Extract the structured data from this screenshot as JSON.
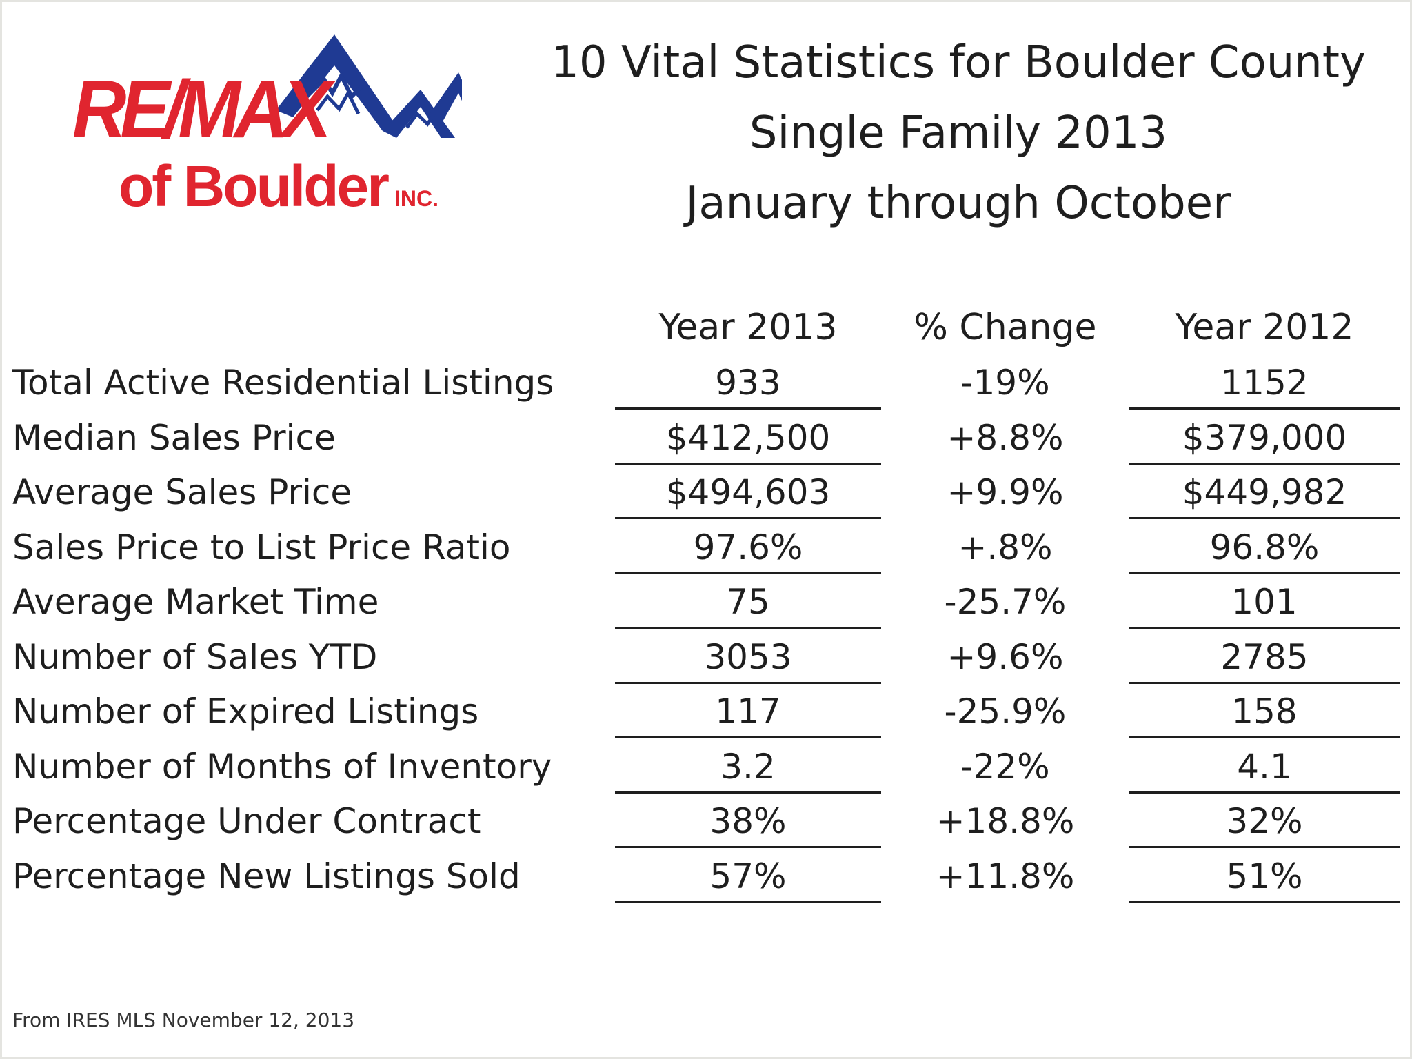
{
  "logo": {
    "brand": "RE/MAX",
    "sub": "of Boulder",
    "inc": "INC.",
    "mountain_color": "#1f3a93",
    "brand_color": "#e0252f"
  },
  "title": {
    "line1": "10 Vital Statistics for Boulder County",
    "line2": "Single Family 2013",
    "line3": "January through October"
  },
  "table": {
    "headers": [
      "Year 2013",
      "% Change",
      "Year 2012"
    ],
    "rows": [
      {
        "label": "Total Active Residential  Listings",
        "y2013": "933",
        "change": "-19%",
        "y2012": "1152"
      },
      {
        "label": "Median Sales Price",
        "y2013": "$412,500",
        "change": "+8.8%",
        "y2012": "$379,000"
      },
      {
        "label": "Average Sales Price",
        "y2013": "$494,603",
        "change": "+9.9%",
        "y2012": "$449,982"
      },
      {
        "label": "Sales Price to List Price Ratio",
        "y2013": "97.6%",
        "change": "+.8%",
        "y2012": "96.8%"
      },
      {
        "label": "Average Market Time",
        "y2013": "75",
        "change": "-25.7%",
        "y2012": "101"
      },
      {
        "label": "Number of Sales YTD",
        "y2013": "3053",
        "change": "+9.6%",
        "y2012": "2785"
      },
      {
        "label": "Number of Expired Listings",
        "y2013": "117",
        "change": "-25.9%",
        "y2012": "158"
      },
      {
        "label": "Number of Months of Inventory",
        "y2013": "3.2",
        "change": "-22%",
        "y2012": "4.1"
      },
      {
        "label": "Percentage Under Contract",
        "y2013": "38%",
        "change": "+18.8%",
        "y2012": "32%"
      },
      {
        "label": "Percentage New Listings Sold",
        "y2013": "57%",
        "change": "+11.8%",
        "y2012": "51%"
      }
    ]
  },
  "footer": {
    "source": "From IRES MLS November 12, 2013"
  }
}
